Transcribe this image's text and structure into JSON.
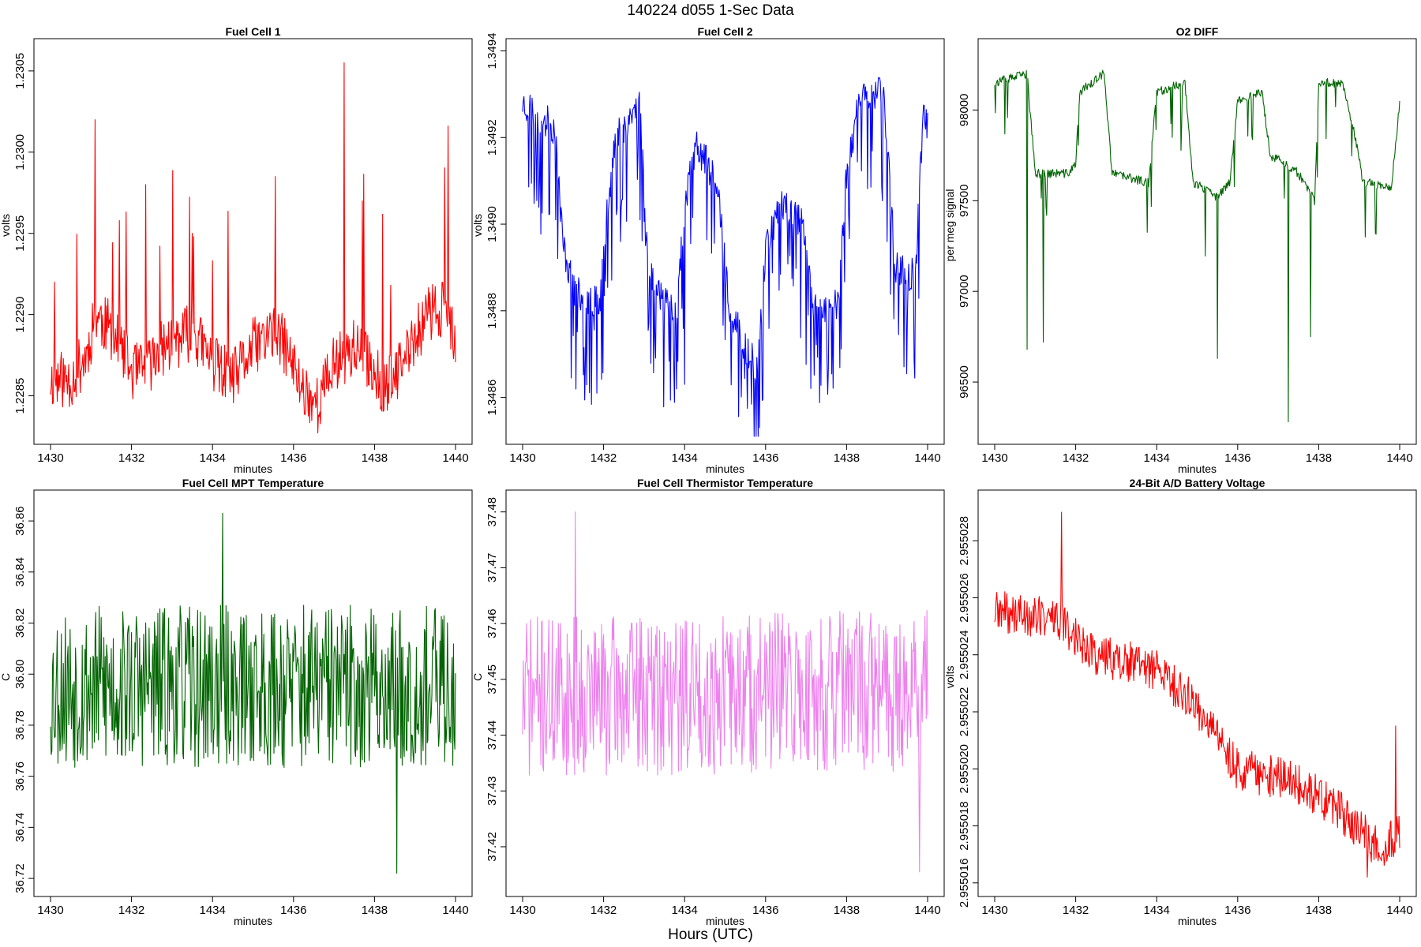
{
  "title": "140224   d055   1-Sec Data",
  "footer_label": "Hours (UTC)",
  "chart_data": [
    {
      "type": "line",
      "title": "Fuel Cell 1",
      "xlabel": "minutes",
      "ylabel": "volts",
      "color": "#ff0000",
      "xlim": [
        1430,
        1440
      ],
      "ylim": [
        1.22825,
        1.23065
      ],
      "x_ticks": [
        1430,
        1432,
        1434,
        1436,
        1438,
        1440
      ],
      "y_ticks": [
        "1.2285",
        "1.2290",
        "1.2295",
        "1.2300",
        "1.2305"
      ],
      "series": [
        {
          "seed": 11,
          "noise": 0.00018,
          "spike_prob": 0.03,
          "spike_amp": 0.0012,
          "spike_dir": 1,
          "anchors": [
            [
              1430.0,
              1.2286
            ],
            [
              1430.5,
              1.2286
            ],
            [
              1430.9,
              1.22875
            ],
            [
              1431.1,
              1.229
            ],
            [
              1431.5,
              1.2289
            ],
            [
              1432.0,
              1.22865
            ],
            [
              1432.3,
              1.22865
            ],
            [
              1432.8,
              1.2288
            ],
            [
              1433.5,
              1.2289
            ],
            [
              1434.0,
              1.2287
            ],
            [
              1434.5,
              1.2286
            ],
            [
              1435.0,
              1.2288
            ],
            [
              1435.5,
              1.2289
            ],
            [
              1435.8,
              1.2288
            ],
            [
              1436.2,
              1.22855
            ],
            [
              1436.6,
              1.22845
            ],
            [
              1437.0,
              1.2287
            ],
            [
              1437.5,
              1.2288
            ],
            [
              1437.9,
              1.2287
            ],
            [
              1438.2,
              1.22855
            ],
            [
              1438.5,
              1.2286
            ],
            [
              1438.9,
              1.2288
            ],
            [
              1439.3,
              1.229
            ],
            [
              1439.7,
              1.22905
            ],
            [
              1440.0,
              1.2288
            ]
          ],
          "spikes": [
            [
              1431.1,
              1.2302
            ],
            [
              1432.35,
              1.2298
            ],
            [
              1435.55,
              1.22985
            ],
            [
              1437.25,
              1.23055
            ],
            [
              1437.7,
              1.2297
            ],
            [
              1430.1,
              1.2292
            ],
            [
              1433.5,
              1.2295
            ]
          ]
        }
      ]
    },
    {
      "type": "line",
      "title": "Fuel Cell 2",
      "xlabel": "minutes",
      "ylabel": "volts",
      "color": "#0000ff",
      "xlim": [
        1430,
        1440
      ],
      "ylim": [
        1.34851,
        1.34941
      ],
      "x_ticks": [
        1430,
        1432,
        1434,
        1436,
        1438,
        1440
      ],
      "y_ticks": [
        "1.3486",
        "1.3488",
        "1.3490",
        "1.3492",
        "1.3494"
      ],
      "series": [
        {
          "seed": 23,
          "noise": 4e-05,
          "spike_prob": 0.2,
          "spike_amp": 0.00025,
          "spike_dir": -1,
          "anchors": [
            [
              1430.0,
              1.34928
            ],
            [
              1430.8,
              1.34922
            ],
            [
              1431.0,
              1.34895
            ],
            [
              1431.3,
              1.34884
            ],
            [
              1431.9,
              1.34882
            ],
            [
              1432.1,
              1.34905
            ],
            [
              1432.3,
              1.3492
            ],
            [
              1432.9,
              1.34928
            ],
            [
              1433.1,
              1.3489
            ],
            [
              1433.5,
              1.34882
            ],
            [
              1433.8,
              1.3488
            ],
            [
              1434.0,
              1.34905
            ],
            [
              1434.3,
              1.34918
            ],
            [
              1434.8,
              1.3491
            ],
            [
              1435.1,
              1.3488
            ],
            [
              1435.8,
              1.34866
            ],
            [
              1436.0,
              1.34895
            ],
            [
              1436.4,
              1.34905
            ],
            [
              1436.9,
              1.349
            ],
            [
              1437.2,
              1.3488
            ],
            [
              1437.8,
              1.34882
            ],
            [
              1438.0,
              1.34912
            ],
            [
              1438.3,
              1.34928
            ],
            [
              1438.9,
              1.34932
            ],
            [
              1439.2,
              1.3489
            ],
            [
              1439.7,
              1.34888
            ],
            [
              1439.9,
              1.34928
            ],
            [
              1440.0,
              1.34923
            ]
          ],
          "spikes": [
            [
              1435.85,
              1.34853
            ],
            [
              1434.0,
              1.34863
            ]
          ]
        }
      ]
    },
    {
      "type": "line",
      "title": "O2 DIFF",
      "xlabel": "minutes",
      "ylabel": "per meg signal",
      "color": "#006400",
      "xlim": [
        1430,
        1440
      ],
      "ylim": [
        96200,
        98350
      ],
      "x_ticks": [
        1430,
        1432,
        1434,
        1436,
        1438,
        1440
      ],
      "y_ticks": [
        "96500",
        "97000",
        "97500",
        "98000"
      ],
      "series": [
        {
          "seed": 37,
          "noise": 25,
          "spike_prob": 0.05,
          "spike_amp": 350,
          "spike_dir": -1,
          "anchors": [
            [
              1430.0,
              98150
            ],
            [
              1430.8,
              98200
            ],
            [
              1431.0,
              97650
            ],
            [
              1431.8,
              97650
            ],
            [
              1432.0,
              97700
            ],
            [
              1432.1,
              98100
            ],
            [
              1432.7,
              98200
            ],
            [
              1432.9,
              97650
            ],
            [
              1433.8,
              97600
            ],
            [
              1434.0,
              98100
            ],
            [
              1434.7,
              98150
            ],
            [
              1434.9,
              97600
            ],
            [
              1435.5,
              97520
            ],
            [
              1435.8,
              97600
            ],
            [
              1436.0,
              98050
            ],
            [
              1436.6,
              98100
            ],
            [
              1436.8,
              97750
            ],
            [
              1437.2,
              97700
            ],
            [
              1437.5,
              97650
            ],
            [
              1437.9,
              97500
            ],
            [
              1438.0,
              98150
            ],
            [
              1438.6,
              98150
            ],
            [
              1438.9,
              97850
            ],
            [
              1439.1,
              97600
            ],
            [
              1439.8,
              97580
            ],
            [
              1440.0,
              98040
            ]
          ],
          "spikes": [
            [
              1430.8,
              96680
            ],
            [
              1431.2,
              96720
            ],
            [
              1435.5,
              96630
            ],
            [
              1437.25,
              96280
            ],
            [
              1437.8,
              96750
            ]
          ]
        }
      ]
    },
    {
      "type": "line",
      "title": "Fuel Cell MPT Temperature",
      "xlabel": "minutes",
      "ylabel": "C",
      "color": "#006400",
      "xlim": [
        1430,
        1440
      ],
      "ylim": [
        36.716,
        36.869
      ],
      "x_ticks": [
        1430,
        1432,
        1434,
        1436,
        1438,
        1440
      ],
      "y_ticks": [
        "36.72",
        "36.74",
        "36.76",
        "36.78",
        "36.80",
        "36.82",
        "36.84",
        "36.86"
      ],
      "series": [
        {
          "seed": 53,
          "noise": 0.032,
          "spike_prob": 0.0,
          "spike_amp": 0,
          "spike_dir": 1,
          "anchors": [
            [
              1430.0,
              36.795
            ],
            [
              1440.0,
              36.795
            ]
          ],
          "spikes": [
            [
              1434.25,
              36.863
            ],
            [
              1438.55,
              36.722
            ]
          ]
        }
      ]
    },
    {
      "type": "line",
      "title": "Fuel Cell Thermistor Temperature",
      "xlabel": "minutes",
      "ylabel": "C",
      "color": "#ee82ee",
      "xlim": [
        1430,
        1440
      ],
      "ylim": [
        37.4125,
        37.4825
      ],
      "x_ticks": [
        1430,
        1432,
        1434,
        1436,
        1438,
        1440
      ],
      "y_ticks": [
        "37.42",
        "37.43",
        "37.44",
        "37.45",
        "37.46",
        "37.47",
        "37.48"
      ],
      "series": [
        {
          "seed": 71,
          "noise": 0.0145,
          "spike_prob": 0.0,
          "spike_amp": 0,
          "spike_dir": 1,
          "anchors": [
            [
              1430.0,
              37.447
            ],
            [
              1440.0,
              37.448
            ]
          ],
          "spikes": [
            [
              1431.3,
              37.48
            ],
            [
              1439.8,
              37.4155
            ]
          ]
        }
      ]
    },
    {
      "type": "line",
      "title": "24-Bit A/D Battery Voltage",
      "xlabel": "minutes",
      "ylabel": "volts",
      "color": "#ff0000",
      "xlim": [
        1430,
        1440
      ],
      "ylim": [
        2.9550158,
        2.9550295
      ],
      "x_ticks": [
        1430,
        1432,
        1434,
        1436,
        1438,
        1440
      ],
      "y_ticks": [
        "2.955016",
        "2.955018",
        "2.955020",
        "2.955022",
        "2.955024",
        "2.955026",
        "2.955028"
      ],
      "series": [
        {
          "seed": 89,
          "noise": 7.5e-07,
          "spike_prob": 0.0,
          "spike_amp": 0,
          "spike_dir": 1,
          "anchors": [
            [
              1430.0,
              2.9550255
            ],
            [
              1431.5,
              2.9550253
            ],
            [
              1432.5,
              2.955024
            ],
            [
              1434.0,
              2.9550235
            ],
            [
              1435.0,
              2.9550222
            ],
            [
              1436.0,
              2.95502
            ],
            [
              1437.5,
              2.9550195
            ],
            [
              1438.5,
              2.9550185
            ],
            [
              1439.5,
              2.9550172
            ],
            [
              1440.0,
              2.9550178
            ]
          ],
          "spikes": [
            [
              1431.65,
              2.955029
            ],
            [
              1439.9,
              2.9550215
            ],
            [
              1439.2,
              2.9550162
            ]
          ]
        }
      ]
    }
  ]
}
